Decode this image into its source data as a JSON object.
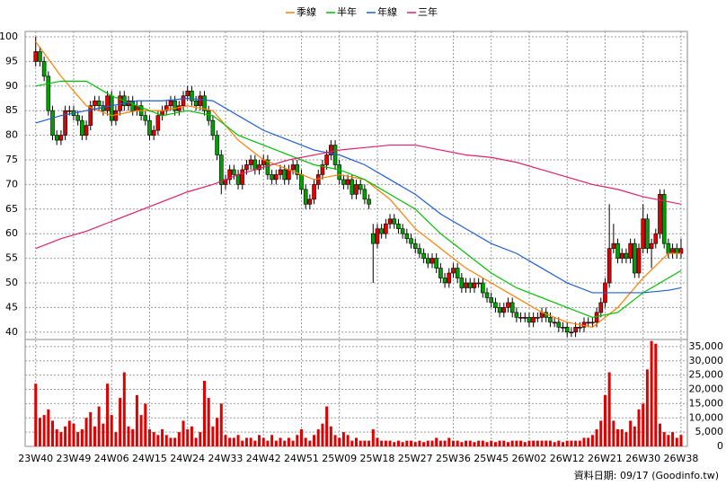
{
  "chart_data": {
    "type": "candlestick",
    "legend_position": "top",
    "grid": true,
    "up_color": "#e00000",
    "down_color": "#00a000",
    "xlim": [
      -2.5,
      154.5
    ],
    "xticks": [
      {
        "value": 0,
        "label": "23W40"
      },
      {
        "value": 9,
        "label": "23W49"
      },
      {
        "value": 18,
        "label": "24W06"
      },
      {
        "value": 27,
        "label": "24W15"
      },
      {
        "value": 36,
        "label": "24W24"
      },
      {
        "value": 45,
        "label": "24W33"
      },
      {
        "value": 54,
        "label": "24W42"
      },
      {
        "value": 63,
        "label": "24W51"
      },
      {
        "value": 72,
        "label": "25W09"
      },
      {
        "value": 81,
        "label": "25W18"
      },
      {
        "value": 90,
        "label": "25W27"
      },
      {
        "value": 99,
        "label": "25W36"
      },
      {
        "value": 108,
        "label": "25W45"
      },
      {
        "value": 117,
        "label": "26W02"
      },
      {
        "value": 126,
        "label": "26W12"
      },
      {
        "value": 135,
        "label": "26W21"
      },
      {
        "value": 144,
        "label": "26W30"
      },
      {
        "value": 153,
        "label": "26W38"
      }
    ],
    "ylim": [
      38.5,
      101.1
    ],
    "yticks": [
      40,
      45,
      50,
      55,
      60,
      65,
      70,
      75,
      80,
      85,
      90,
      95,
      100
    ],
    "x": [
      0,
      1,
      2,
      3,
      4,
      5,
      6,
      7,
      8,
      9,
      10,
      11,
      12,
      13,
      14,
      15,
      16,
      17,
      18,
      19,
      20,
      21,
      22,
      23,
      24,
      25,
      26,
      27,
      28,
      29,
      30,
      31,
      32,
      33,
      34,
      35,
      36,
      37,
      38,
      39,
      40,
      41,
      42,
      43,
      44,
      45,
      46,
      47,
      48,
      49,
      50,
      51,
      52,
      53,
      54,
      55,
      56,
      57,
      58,
      59,
      60,
      61,
      62,
      63,
      64,
      65,
      66,
      67,
      68,
      69,
      70,
      71,
      72,
      73,
      74,
      75,
      76,
      77,
      78,
      79,
      80,
      81,
      82,
      83,
      84,
      85,
      86,
      87,
      88,
      89,
      90,
      91,
      92,
      93,
      94,
      95,
      96,
      97,
      98,
      99,
      100,
      101,
      102,
      103,
      104,
      105,
      106,
      107,
      108,
      109,
      110,
      111,
      112,
      113,
      114,
      115,
      116,
      117,
      118,
      119,
      120,
      121,
      122,
      123,
      124,
      125,
      126,
      127,
      128,
      129,
      130,
      131,
      132,
      133,
      134,
      135,
      136,
      137,
      138,
      139,
      140,
      141,
      142,
      143,
      144,
      145,
      146,
      147,
      148,
      149,
      150,
      151,
      152,
      153
    ],
    "open": [
      95,
      97,
      95,
      92,
      85,
      80,
      79,
      80,
      85,
      85,
      84,
      83,
      80,
      82,
      86,
      87,
      86,
      85,
      88,
      83,
      85,
      88,
      86,
      87,
      85,
      86,
      84,
      83,
      80,
      81,
      84,
      85,
      86,
      87,
      85,
      86,
      88,
      89,
      87,
      86,
      88,
      85,
      83,
      80,
      76,
      70,
      71,
      73,
      72,
      70,
      73,
      74,
      75,
      73,
      74,
      75,
      72,
      71,
      72,
      73,
      71,
      73,
      74,
      72,
      69,
      66,
      67,
      70,
      72,
      74,
      76,
      78,
      74,
      71,
      70,
      71,
      68,
      70,
      69,
      67,
      60,
      58,
      61,
      60,
      62,
      63,
      62,
      61,
      60,
      59,
      58,
      57,
      56,
      55,
      54,
      55,
      53,
      51,
      50,
      52,
      53,
      51,
      49,
      50,
      49,
      50,
      50,
      48,
      47,
      46,
      45,
      44,
      45,
      46,
      44,
      43,
      43,
      43,
      42,
      43,
      43,
      44,
      43,
      42,
      42,
      41,
      41,
      40,
      40,
      41,
      41,
      42,
      42,
      42,
      44,
      46,
      50,
      57,
      58,
      55,
      56,
      55,
      58,
      52,
      57,
      63,
      57,
      58,
      60,
      68,
      58,
      56,
      57,
      56
    ],
    "high": [
      100,
      98,
      96,
      93,
      86,
      81,
      81,
      86,
      86,
      86,
      85,
      84,
      83,
      87,
      88,
      88,
      87,
      89,
      89,
      86,
      89,
      89,
      88,
      88,
      87,
      87,
      85,
      84,
      82,
      85,
      86,
      87,
      88,
      88,
      87,
      89,
      90,
      90,
      88,
      89,
      89,
      86,
      84,
      81,
      77,
      72,
      74,
      74,
      73,
      74,
      75,
      76,
      76,
      75,
      76,
      76,
      73,
      73,
      74,
      74,
      74,
      75,
      75,
      73,
      70,
      68,
      71,
      73,
      75,
      77,
      79,
      79,
      75,
      72,
      72,
      72,
      71,
      71,
      70,
      68,
      62,
      62,
      62,
      63,
      64,
      64,
      63,
      62,
      61,
      60,
      59,
      58,
      57,
      56,
      56,
      56,
      54,
      52,
      53,
      54,
      54,
      52,
      51,
      51,
      51,
      51,
      51,
      49,
      48,
      47,
      46,
      46,
      47,
      47,
      45,
      44,
      44,
      44,
      44,
      44,
      45,
      45,
      44,
      43,
      43,
      42,
      42,
      41,
      42,
      42,
      43,
      43,
      43,
      45,
      47,
      51,
      66,
      62,
      59,
      57,
      57,
      59,
      59,
      58,
      66,
      64,
      59,
      61,
      69,
      69,
      59,
      58,
      58,
      59
    ],
    "low": [
      94,
      94,
      91,
      84,
      79,
      78,
      78,
      79,
      84,
      83,
      82,
      79,
      79,
      81,
      85,
      85,
      84,
      84,
      82,
      82,
      84,
      85,
      85,
      84,
      84,
      83,
      82,
      79,
      79,
      80,
      83,
      84,
      85,
      84,
      84,
      85,
      87,
      86,
      85,
      85,
      84,
      82,
      79,
      75,
      68,
      69,
      70,
      71,
      69,
      69,
      72,
      73,
      72,
      72,
      73,
      71,
      70,
      70,
      71,
      70,
      70,
      72,
      71,
      68,
      65,
      65,
      66,
      69,
      71,
      73,
      75,
      73,
      70,
      69,
      69,
      67,
      67,
      68,
      66,
      65,
      50,
      57,
      59,
      59,
      61,
      61,
      60,
      59,
      58,
      57,
      56,
      55,
      54,
      53,
      53,
      52,
      50,
      49,
      49,
      51,
      50,
      48,
      48,
      48,
      48,
      49,
      47,
      46,
      45,
      44,
      43,
      43,
      44,
      43,
      42,
      42,
      42,
      41,
      41,
      42,
      42,
      42,
      41,
      41,
      40,
      40,
      39,
      39,
      39,
      40,
      40,
      41,
      41,
      41,
      43,
      45,
      49,
      56,
      54,
      54,
      54,
      54,
      51,
      51,
      56,
      56,
      53,
      57,
      59,
      57,
      55,
      55,
      55,
      55
    ],
    "close": [
      97,
      95,
      92,
      85,
      80,
      79,
      80,
      85,
      85,
      84,
      83,
      80,
      82,
      86,
      87,
      86,
      85,
      88,
      83,
      85,
      88,
      86,
      87,
      85,
      86,
      84,
      83,
      80,
      81,
      84,
      85,
      86,
      87,
      85,
      86,
      88,
      89,
      87,
      86,
      88,
      85,
      83,
      80,
      76,
      70,
      71,
      73,
      72,
      70,
      73,
      74,
      75,
      73,
      74,
      75,
      72,
      71,
      72,
      73,
      71,
      73,
      74,
      72,
      69,
      66,
      67,
      70,
      72,
      74,
      76,
      78,
      74,
      71,
      70,
      71,
      68,
      70,
      69,
      67,
      66,
      58,
      61,
      60,
      62,
      63,
      62,
      61,
      60,
      59,
      58,
      57,
      56,
      55,
      54,
      55,
      53,
      51,
      50,
      52,
      53,
      51,
      49,
      50,
      49,
      50,
      50,
      48,
      47,
      46,
      45,
      44,
      45,
      46,
      44,
      43,
      43,
      43,
      42,
      43,
      43,
      44,
      43,
      42,
      42,
      41,
      41,
      40,
      40,
      41,
      41,
      42,
      42,
      42,
      44,
      46,
      50,
      57,
      58,
      55,
      56,
      55,
      58,
      52,
      57,
      63,
      57,
      58,
      60,
      68,
      58,
      56,
      57,
      56,
      57
    ],
    "series": [
      {
        "name": "季線",
        "color": "#ff7f00",
        "x": [
          0,
          6,
          12,
          18,
          24,
          30,
          36,
          42,
          48,
          54,
          60,
          66,
          72,
          78,
          84,
          90,
          96,
          102,
          108,
          114,
          120,
          126,
          132,
          138,
          144,
          150,
          153
        ],
        "values": [
          99,
          92,
          86,
          84,
          85,
          85,
          86,
          85,
          79,
          75,
          73,
          71,
          72,
          71,
          67,
          61,
          57,
          53,
          50,
          47,
          44,
          42,
          41,
          45,
          51,
          56,
          56
        ]
      },
      {
        "name": "半年",
        "color": "#00c000",
        "x": [
          0,
          6,
          12,
          18,
          24,
          30,
          36,
          42,
          48,
          54,
          60,
          66,
          72,
          78,
          84,
          90,
          96,
          102,
          108,
          114,
          120,
          126,
          132,
          138,
          144,
          150,
          153
        ],
        "values": [
          90,
          91,
          91,
          88,
          86,
          84,
          85,
          84,
          80,
          78,
          76,
          74,
          73,
          71,
          68,
          65,
          60,
          56,
          52,
          49,
          47,
          45,
          43,
          44,
          48,
          51,
          52.5
        ]
      },
      {
        "name": "年線",
        "color": "#1f5fd0",
        "x": [
          0,
          6,
          12,
          18,
          24,
          30,
          36,
          42,
          48,
          54,
          60,
          66,
          72,
          78,
          84,
          90,
          96,
          102,
          108,
          114,
          120,
          126,
          132,
          138,
          144,
          150,
          153
        ],
        "values": [
          82.5,
          84,
          85,
          86,
          87,
          87,
          87.5,
          87,
          84,
          81,
          79,
          77,
          76,
          74,
          71,
          68,
          64,
          61,
          58,
          56,
          53,
          50,
          48,
          48,
          48,
          48.5,
          49
        ]
      },
      {
        "name": "三年",
        "color": "#e0206a",
        "x": [
          0,
          6,
          12,
          18,
          24,
          30,
          36,
          42,
          48,
          54,
          60,
          66,
          72,
          78,
          84,
          90,
          96,
          102,
          108,
          114,
          120,
          126,
          132,
          138,
          144,
          150,
          153
        ],
        "values": [
          57,
          59,
          60.5,
          62.5,
          64.5,
          66.5,
          68.5,
          70,
          72,
          73.5,
          75,
          76,
          77,
          77.5,
          78,
          78,
          77,
          76,
          75.5,
          74.5,
          73,
          71.5,
          70,
          69,
          67.5,
          66.5,
          66
        ]
      }
    ],
    "volume": {
      "color": "#e00000",
      "ylim": [
        0,
        37500
      ],
      "yticks": [
        0,
        {
          "value": 5000,
          "label": "5,000"
        },
        {
          "value": 10000,
          "label": "10,000"
        },
        {
          "value": 15000,
          "label": "15,000"
        },
        {
          "value": 20000,
          "label": "20,000"
        },
        {
          "value": 25000,
          "label": "25,000"
        },
        {
          "value": 30000,
          "label": "30,000"
        },
        {
          "value": 35000,
          "label": "35,000"
        }
      ],
      "values": [
        22000,
        10000,
        11000,
        13000,
        9000,
        6000,
        5000,
        7000,
        9000,
        8000,
        5000,
        6000,
        10000,
        12000,
        7000,
        14000,
        8000,
        22000,
        11000,
        5000,
        17000,
        26000,
        7000,
        6000,
        18000,
        11000,
        15000,
        6000,
        5000,
        4000,
        6000,
        4000,
        3000,
        3000,
        5000,
        9000,
        6000,
        7000,
        3000,
        5000,
        23000,
        17000,
        7000,
        10000,
        15000,
        4000,
        3000,
        3000,
        4000,
        2000,
        3000,
        3000,
        2000,
        4000,
        3000,
        2000,
        4000,
        2000,
        3000,
        2000,
        3000,
        2000,
        4000,
        6000,
        3000,
        2000,
        4000,
        6000,
        8000,
        14000,
        7000,
        4000,
        3000,
        5000,
        4000,
        2000,
        3000,
        2000,
        2000,
        2000,
        6000,
        3000,
        2000,
        2000,
        2000,
        1500,
        2000,
        1500,
        2000,
        2000,
        1500,
        2000,
        1500,
        2000,
        2000,
        3000,
        2000,
        2000,
        3000,
        2000,
        2000,
        1500,
        2000,
        2000,
        1500,
        2000,
        2000,
        1500,
        2000,
        1500,
        2000,
        2000,
        1500,
        2000,
        2000,
        2000,
        1500,
        2000,
        2000,
        2000,
        2000,
        2000,
        2000,
        1500,
        2000,
        1500,
        2000,
        2000,
        2000,
        2000,
        3000,
        3000,
        4000,
        6000,
        9000,
        18000,
        26000,
        9000,
        6000,
        6000,
        5000,
        9000,
        7000,
        13000,
        15000,
        27000,
        37000,
        36000,
        8000,
        5000,
        4000,
        5000,
        3000,
        4000
      ]
    },
    "note": "資料日期: 09/17 (Goodinfo.tw)"
  }
}
